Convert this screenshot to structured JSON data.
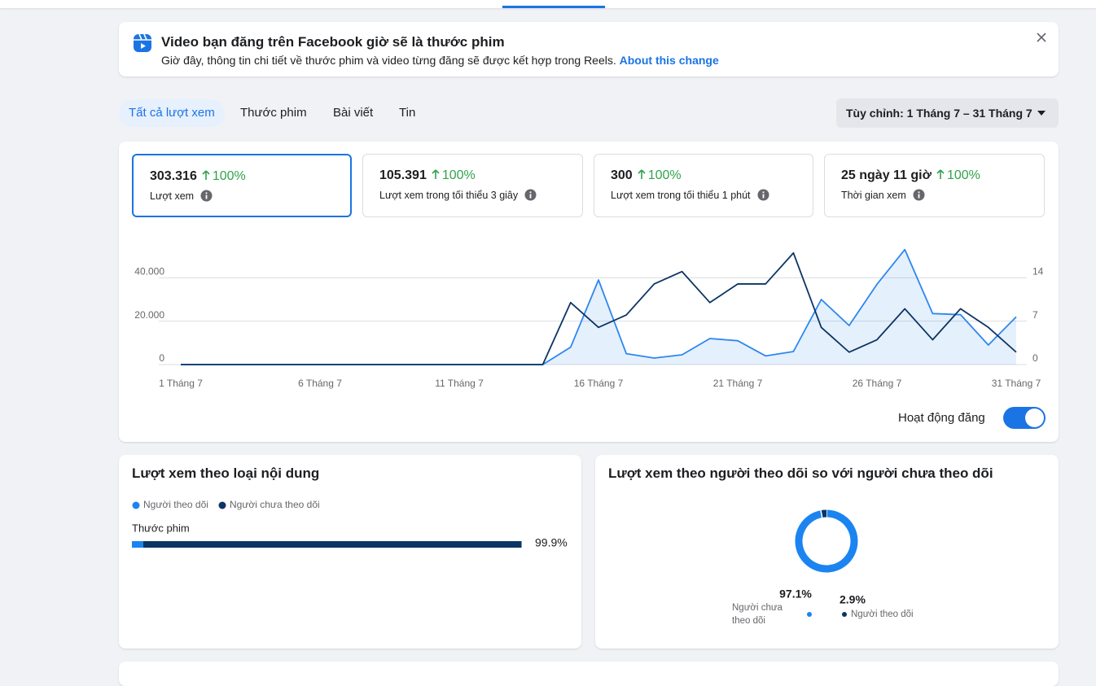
{
  "banner": {
    "title": "Video bạn đăng trên Facebook giờ sẽ là thước phim",
    "text": "Giờ đây, thông tin chi tiết về thước phim và video từng đăng sẽ được kết hợp trong Reels.",
    "link": "About this change"
  },
  "tabs": [
    "Tất cả lượt xem",
    "Thước phim",
    "Bài viết",
    "Tin"
  ],
  "date_range": "Tùy chỉnh: 1 Tháng 7 – 31 Tháng 7",
  "metrics": [
    {
      "value": "303.316",
      "change": "100%",
      "label": "Lượt xem"
    },
    {
      "value": "105.391",
      "change": "100%",
      "label": "Lượt xem trong tối thiểu 3 giây"
    },
    {
      "value": "300",
      "change": "100%",
      "label": "Lượt xem trong tối thiểu 1 phút"
    },
    {
      "value": "25 ngày 11 giờ",
      "change": "100%",
      "label": "Thời gian xem"
    }
  ],
  "chart_data": [
    {
      "type": "line",
      "categories": [
        "1 Tháng 7",
        null,
        null,
        null,
        null,
        "6 Tháng 7",
        null,
        null,
        null,
        null,
        "11 Tháng 7",
        null,
        null,
        null,
        null,
        "16 Tháng 7",
        null,
        null,
        null,
        null,
        "21 Tháng 7",
        null,
        null,
        null,
        null,
        "26 Tháng 7",
        null,
        null,
        null,
        null,
        "31 Tháng 7"
      ],
      "ylim": [
        0,
        60000
      ],
      "yticks": [
        {
          "value": 0,
          "label": "0"
        },
        {
          "value": 20000,
          "label": "20.000"
        },
        {
          "value": 40000,
          "label": "40.000"
        }
      ],
      "y2lim": [
        0,
        21
      ],
      "y2ticks": [
        0,
        7,
        14
      ],
      "grid": true,
      "series": [
        {
          "color": "#2d87ee",
          "area": true,
          "values": [
            0,
            0,
            0,
            0,
            0,
            0,
            0,
            0,
            0,
            0,
            0,
            0,
            0,
            0,
            8000,
            39000,
            5000,
            3000,
            4500,
            12000,
            11000,
            4000,
            6000,
            30000,
            18000,
            37000,
            53000,
            23500,
            23000,
            9000,
            22000
          ]
        },
        {
          "name": "Hoạt động đăng",
          "color": "#0b3563",
          "axis": "y2",
          "values": [
            0,
            0,
            0,
            0,
            0,
            0,
            0,
            0,
            0,
            0,
            0,
            0,
            0,
            0,
            10,
            6,
            8,
            13,
            15,
            10,
            13,
            13,
            18,
            6,
            2,
            4,
            9,
            4,
            9,
            6,
            2
          ]
        }
      ]
    },
    {
      "type": "bar",
      "title": "Lượt xem theo loại nội dung",
      "categories": [
        "Thước phim"
      ],
      "values": [
        99.9
      ],
      "value_labels": [
        "99.9%"
      ],
      "xlim": [
        0,
        100
      ],
      "series": [
        {
          "name": "Người theo dõi",
          "color": "#1b84f0",
          "values": [
            2.9
          ]
        },
        {
          "name": "Người chưa theo dõi",
          "color": "#0b3563",
          "values": [
            97.0
          ]
        }
      ]
    },
    {
      "type": "pie",
      "title": "Lượt xem theo người theo dõi so với người chưa theo dõi",
      "categories": [
        "Người chưa theo dõi",
        "Người theo dõi"
      ],
      "values": [
        97.1,
        2.9
      ],
      "value_labels": [
        "97.1%",
        "2.9%"
      ],
      "colors": [
        "#1b84f0",
        "#0b3563"
      ]
    }
  ]
}
